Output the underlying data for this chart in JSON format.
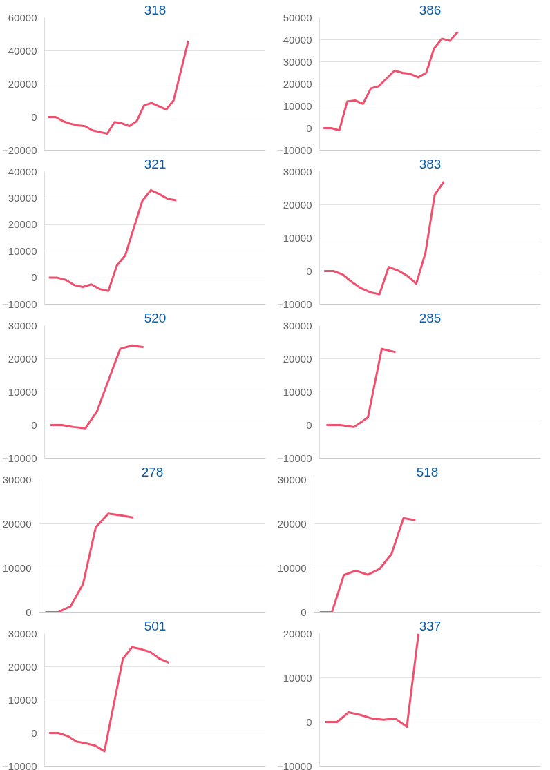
{
  "chart_data": [
    {
      "type": "line",
      "title": "318",
      "color": "#f0506e",
      "grid": "y",
      "tick_labels": "y",
      "categories": [
        null,
        null,
        null,
        null,
        null,
        null,
        null,
        null,
        null,
        null,
        null,
        null,
        null,
        null,
        null,
        null,
        null,
        null,
        null,
        null,
        null,
        null,
        null,
        null,
        null,
        null,
        null,
        null,
        null,
        null
      ],
      "values": [
        0,
        0,
        -2500,
        -4000,
        -5000,
        -5500,
        -8000,
        -9000,
        -10000,
        -3000,
        -3800,
        -5500,
        -2500,
        7000,
        8500,
        6500,
        4500,
        10000,
        28000,
        46000,
        null,
        null,
        null,
        null,
        null,
        null,
        null,
        null,
        null,
        null
      ],
      "ylim": [
        -20000,
        60000
      ],
      "yticks": [
        -20000,
        0,
        20000,
        40000,
        60000
      ]
    },
    {
      "type": "line",
      "title": "386",
      "color": "#f0506e",
      "grid": "y",
      "tick_labels": "y",
      "categories": [
        null,
        null,
        null,
        null,
        null,
        null,
        null,
        null,
        null,
        null,
        null,
        null,
        null,
        null,
        null,
        null,
        null,
        null,
        null,
        null,
        null,
        null,
        null,
        null,
        null,
        null,
        null,
        null
      ],
      "values": [
        0,
        0,
        -1000,
        12000,
        12500,
        11000,
        18000,
        19000,
        22500,
        26000,
        25000,
        24500,
        23000,
        25000,
        36000,
        40500,
        39500,
        43500,
        null,
        null,
        null,
        null,
        null,
        null,
        null,
        null,
        null,
        null
      ],
      "ylim": [
        -10000,
        50000
      ],
      "yticks": [
        -10000,
        0,
        10000,
        20000,
        30000,
        40000,
        50000
      ]
    },
    {
      "type": "line",
      "title": "321",
      "color": "#f0506e",
      "grid": "y",
      "tick_labels": "y",
      "categories": [
        null,
        null,
        null,
        null,
        null,
        null,
        null,
        null,
        null,
        null,
        null,
        null,
        null,
        null,
        null,
        null,
        null,
        null,
        null,
        null,
        null,
        null,
        null,
        null,
        null,
        null
      ],
      "values": [
        0,
        0,
        -800,
        -2800,
        -3500,
        -2500,
        -4300,
        -5000,
        4600,
        8500,
        18800,
        29000,
        33000,
        31500,
        29700,
        29200,
        null,
        null,
        null,
        null,
        null,
        null,
        null,
        null,
        null,
        null
      ],
      "ylim": [
        -10000,
        40000
      ],
      "yticks": [
        -10000,
        0,
        10000,
        20000,
        30000,
        40000
      ]
    },
    {
      "type": "line",
      "title": "383",
      "color": "#f0506e",
      "grid": "y",
      "tick_labels": "y",
      "categories": [
        null,
        null,
        null,
        null,
        null,
        null,
        null,
        null,
        null,
        null,
        null,
        null,
        null,
        null,
        null,
        null,
        null,
        null,
        null,
        null,
        null,
        null,
        null,
        null
      ],
      "values": [
        0,
        0,
        -1000,
        -3300,
        -5200,
        -6400,
        -7000,
        1200,
        200,
        -1400,
        -3800,
        5600,
        23000,
        27000,
        null,
        null,
        null,
        null,
        null,
        null,
        null,
        null,
        null,
        null
      ],
      "ylim": [
        -10000,
        30000
      ],
      "yticks": [
        -10000,
        0,
        10000,
        20000,
        30000
      ]
    },
    {
      "type": "line",
      "title": "520",
      "color": "#f0506e",
      "grid": "y",
      "tick_labels": "y",
      "categories": [
        null,
        null,
        null,
        null,
        null,
        null,
        null,
        null,
        null,
        null,
        null,
        null,
        null,
        null,
        null,
        null,
        null,
        null,
        null
      ],
      "values": [
        0,
        0,
        -600,
        -1000,
        4100,
        13600,
        23000,
        24000,
        23500,
        null,
        null,
        null,
        null,
        null,
        null,
        null,
        null,
        null,
        null
      ],
      "ylim": [
        -10000,
        30000
      ],
      "yticks": [
        -10000,
        0,
        10000,
        20000,
        30000
      ]
    },
    {
      "type": "line",
      "title": "285",
      "color": "#f0506e",
      "grid": "y",
      "tick_labels": "y",
      "categories": [
        null,
        null,
        null,
        null,
        null,
        null,
        null,
        null,
        null,
        null,
        null,
        null,
        null,
        null,
        null,
        null
      ],
      "values": [
        0,
        0,
        -600,
        2300,
        23000,
        22000,
        null,
        null,
        null,
        null,
        null,
        null,
        null,
        null,
        null,
        null
      ],
      "ylim": [
        -10000,
        30000
      ],
      "yticks": [
        -10000,
        0,
        10000,
        20000,
        30000
      ]
    },
    {
      "type": "line",
      "title": "278",
      "color": "#f0506e",
      "grid": "y",
      "tick_labels": "y",
      "categories": [
        null,
        null,
        null,
        null,
        null,
        null,
        null,
        null,
        null,
        null,
        null,
        null,
        null,
        null,
        null,
        null,
        null,
        null
      ],
      "values": [
        0,
        0,
        1300,
        6400,
        19200,
        22300,
        21900,
        21400,
        null,
        null,
        null,
        null,
        null,
        null,
        null,
        null,
        null,
        null
      ],
      "ylim": [
        0,
        30000
      ],
      "yticks": [
        0,
        10000,
        20000,
        30000
      ]
    },
    {
      "type": "line",
      "title": "518",
      "color": "#f0506e",
      "grid": "y",
      "tick_labels": "y",
      "categories": [
        null,
        null,
        null,
        null,
        null,
        null,
        null,
        null,
        null,
        null,
        null,
        null,
        null,
        null,
        null,
        null,
        null,
        null,
        null
      ],
      "values": [
        0,
        0,
        8400,
        9400,
        8500,
        9800,
        13200,
        21300,
        20800,
        null,
        null,
        null,
        null,
        null,
        null,
        null,
        null,
        null,
        null
      ],
      "ylim": [
        0,
        30000
      ],
      "yticks": [
        0,
        10000,
        20000,
        30000
      ]
    },
    {
      "type": "line",
      "title": "501",
      "color": "#f0506e",
      "grid": "y",
      "tick_labels": "y",
      "categories": [
        null,
        null,
        null,
        null,
        null,
        null,
        null,
        null,
        null,
        null,
        null,
        null,
        null,
        null,
        null,
        null,
        null,
        null,
        null,
        null,
        null,
        null,
        null,
        null
      ],
      "values": [
        0,
        0,
        -900,
        -2600,
        -3100,
        -3800,
        -5500,
        8500,
        22400,
        25900,
        25300,
        24400,
        22400,
        21200,
        null,
        null,
        null,
        null,
        null,
        null,
        null,
        null,
        null,
        null
      ],
      "ylim": [
        -10000,
        30000
      ],
      "yticks": [
        -10000,
        0,
        10000,
        20000,
        30000
      ]
    },
    {
      "type": "line",
      "title": "337",
      "color": "#f0506e",
      "grid": "y",
      "tick_labels": "y",
      "categories": [
        null,
        null,
        null,
        null,
        null,
        null,
        null,
        null,
        null,
        null,
        null,
        null,
        null,
        null,
        null,
        null,
        null,
        null,
        null
      ],
      "values": [
        0,
        0,
        2200,
        1600,
        800,
        500,
        800,
        -1100,
        20000,
        null,
        null,
        null,
        null,
        null,
        null,
        null,
        null,
        null,
        null
      ],
      "ylim": [
        -10000,
        20000
      ],
      "yticks": [
        -10000,
        0,
        10000,
        20000
      ]
    }
  ]
}
